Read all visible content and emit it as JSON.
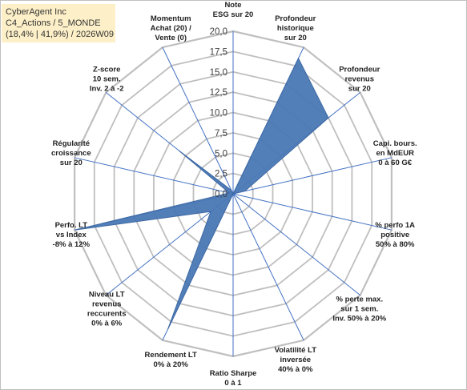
{
  "title": {
    "lines": [
      "CyberAgent Inc",
      "C4_Actions / 5_MONDE",
      "(18,4% | 41,9%) / 2026W09"
    ]
  },
  "colors": {
    "fill": "#4a78b5",
    "stroke": "#3d68a3",
    "axis": "#4472c4",
    "grid": "#bfbfbf",
    "title_bg": "#fdf0c8"
  },
  "chart_data": {
    "type": "radar",
    "range": [
      0,
      20
    ],
    "tick_step": 2.5,
    "tick_labels": [
      "0,0",
      "2,5",
      "5,0",
      "7,5",
      "10,0",
      "12,5",
      "15,0",
      "17,5",
      "20,0"
    ],
    "grid": true,
    "axes": [
      {
        "label": [
          "Note",
          "ESG sur 20"
        ],
        "value": 0
      },
      {
        "label": [
          "Profondeur",
          "historique",
          "sur 20"
        ],
        "value": 18.5
      },
      {
        "label": [
          "Profondeur",
          "revenus",
          "sur 20"
        ],
        "value": 15
      },
      {
        "label": [
          "Capi. bours.",
          "en MdEUR",
          "0 à 60 G€"
        ],
        "value": 1.5
      },
      {
        "label": [
          "% perfo 1A",
          "positive",
          "50% à 80%"
        ],
        "value": 0
      },
      {
        "label": [
          "% perte max.",
          "sur 1 sem.",
          "Inv. 50% à 20%"
        ],
        "value": 0
      },
      {
        "label": [
          "Volatilité LT",
          "inversée",
          "40% à 0%"
        ],
        "value": 0
      },
      {
        "label": [
          "Ratio Sharpe",
          "0 à 1"
        ],
        "value": 0
      },
      {
        "label": [
          "Rendement LT",
          "0% à 20%"
        ],
        "value": 18.5
      },
      {
        "label": [
          "Niveau LT",
          "revenus",
          "reccurents",
          "0% à 6%"
        ],
        "value": 3.5
      },
      {
        "label": [
          "Perfo. LT",
          "vs Index",
          "-8% à 12%"
        ],
        "value": 20
      },
      {
        "label": [
          "Régularité",
          "croissance",
          "sur 20"
        ],
        "value": 0.5
      },
      {
        "label": [
          "Z-score",
          "10 sem.",
          "Inv. 2 à -2"
        ],
        "value": 8.5
      },
      {
        "label": [
          "Momentum",
          "Achat (20) /",
          "Vente (0)"
        ],
        "value": 0.5
      }
    ]
  }
}
